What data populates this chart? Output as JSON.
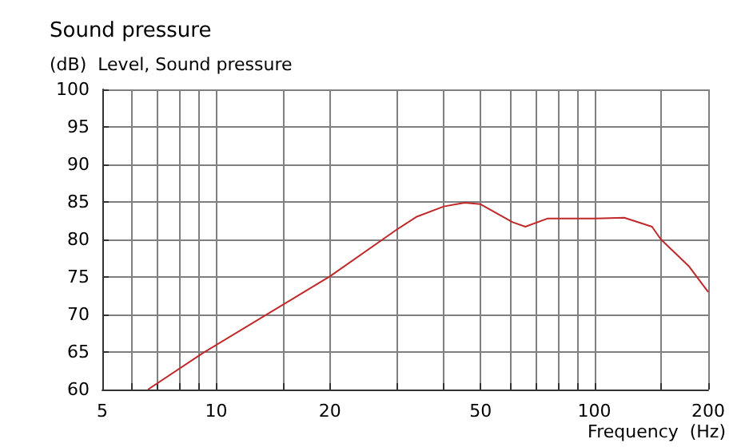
{
  "chart_data": {
    "type": "line",
    "title": "Sound pressure",
    "subtitle": "(dB)  Level, Sound pressure",
    "xlabel": "Frequency  (Hz)",
    "log": "x",
    "xlim": [
      5,
      200
    ],
    "ylim": [
      60,
      100
    ],
    "xticks": [
      5,
      {
        "value": 6,
        "label": null
      },
      {
        "value": 7,
        "label": null
      },
      {
        "value": 8,
        "label": null
      },
      {
        "value": 9,
        "label": null
      },
      10,
      {
        "value": 15,
        "label": null
      },
      20,
      {
        "value": 30,
        "label": null
      },
      {
        "value": 40,
        "label": null
      },
      50,
      {
        "value": 60,
        "label": null
      },
      {
        "value": 70,
        "label": null
      },
      {
        "value": 80,
        "label": null
      },
      {
        "value": 90,
        "label": null
      },
      100,
      {
        "value": 150,
        "label": null
      },
      200
    ],
    "yticks": [
      60,
      65,
      70,
      75,
      80,
      85,
      90,
      95,
      100
    ],
    "grid": true,
    "marker": "none",
    "line_style": "solid",
    "series": [
      {
        "color": "#c0282a",
        "x": [
          6.6,
          9.25,
          20,
          30,
          33.8,
          40,
          45.4,
          50,
          60.8,
          65.7,
          75.3,
          100,
          120,
          142,
          150,
          178,
          200
        ],
        "values": [
          60,
          64.9,
          75.1,
          81.3,
          83,
          84.4,
          84.9,
          84.7,
          82.3,
          81.7,
          82.8,
          82.8,
          82.9,
          81.7,
          80,
          76.4,
          73
        ]
      }
    ]
  }
}
